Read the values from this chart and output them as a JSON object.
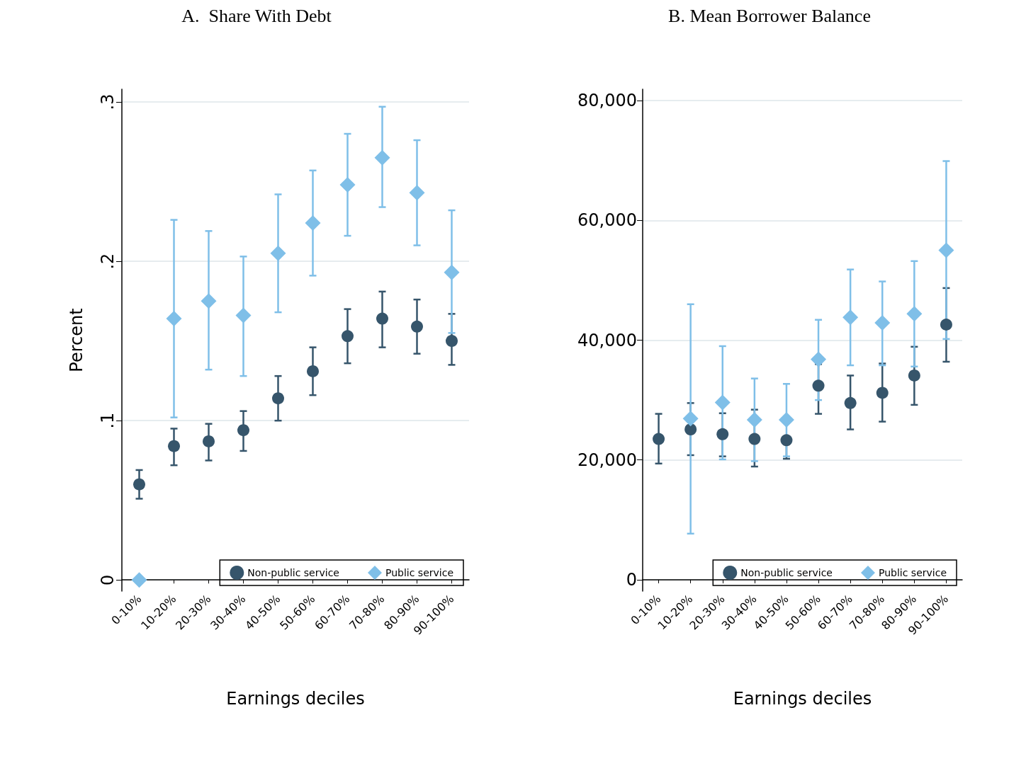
{
  "chart_data": [
    {
      "type": "scatter",
      "title": "A.  Share With Debt",
      "xlabel": "Earnings deciles",
      "ylabel": "Percent",
      "categories": [
        "0-10%",
        "10-20%",
        "20-30%",
        "30-40%",
        "40-50%",
        "50-60%",
        "60-70%",
        "70-80%",
        "80-90%",
        "90-100%"
      ],
      "series": [
        {
          "name": "Non-public service",
          "color": "#36556b",
          "marker": "circle",
          "values": [
            0.06,
            0.084,
            0.087,
            0.094,
            0.114,
            0.131,
            0.153,
            0.164,
            0.159,
            0.15
          ],
          "errors": [
            [
              0.051,
              0.069
            ],
            [
              0.072,
              0.095
            ],
            [
              0.075,
              0.098
            ],
            [
              0.081,
              0.106
            ],
            [
              0.1,
              0.128
            ],
            [
              0.116,
              0.146
            ],
            [
              0.136,
              0.17
            ],
            [
              0.146,
              0.181
            ],
            [
              0.142,
              0.176
            ],
            [
              0.135,
              0.167
            ]
          ]
        },
        {
          "name": "Public service",
          "color": "#7fbfe8",
          "marker": "diamond",
          "values": [
            0,
            0.164,
            0.175,
            0.166,
            0.205,
            0.224,
            0.248,
            0.265,
            0.243,
            0.193
          ],
          "errors": [
            null,
            [
              0.102,
              0.226
            ],
            [
              0.132,
              0.219
            ],
            [
              0.128,
              0.203
            ],
            [
              0.168,
              0.242
            ],
            [
              0.191,
              0.257
            ],
            [
              0.216,
              0.28
            ],
            [
              0.234,
              0.297
            ],
            [
              0.21,
              0.276
            ],
            [
              0.155,
              0.232
            ]
          ]
        }
      ],
      "ylim": [
        -0.007,
        0.308
      ],
      "yticks": [
        {
          "value": 0,
          "label": "0"
        },
        {
          "value": 0.1,
          "label": ".1"
        },
        {
          "value": 0.2,
          "label": ".2"
        },
        {
          "value": 0.3,
          "label": ".3"
        }
      ],
      "grid": "y",
      "legend": "bottom right"
    },
    {
      "type": "scatter",
      "title": "B. Mean Borrower Balance",
      "xlabel": "Earnings deciles",
      "categories": [
        "0-10%",
        "10-20%",
        "20-30%",
        "30-40%",
        "40-50%",
        "50-60%",
        "60-70%",
        "70-80%",
        "80-90%",
        "90-100%"
      ],
      "series": [
        {
          "name": "Non-public service",
          "color": "#36556b",
          "marker": "circle",
          "values": [
            23500,
            25100,
            24300,
            23500,
            23300,
            32400,
            29500,
            31200,
            34100,
            42600
          ],
          "errors": [
            [
              19400,
              27700
            ],
            [
              20800,
              29500
            ],
            [
              20600,
              27800
            ],
            [
              18900,
              28400
            ],
            [
              20200,
              23300
            ],
            [
              27700,
              36000
            ],
            [
              25100,
              34100
            ],
            [
              26400,
              36100
            ],
            [
              29200,
              38900
            ],
            [
              36400,
              48700
            ]
          ]
        },
        {
          "name": "Public service",
          "color": "#7fbfe8",
          "marker": "diamond",
          "values": [
            null,
            26900,
            29600,
            26700,
            26700,
            36800,
            43800,
            42900,
            44400,
            55000
          ],
          "errors": [
            null,
            [
              7700,
              46000
            ],
            [
              20100,
              39000
            ],
            [
              19800,
              33600
            ],
            [
              20600,
              32700
            ],
            [
              30000,
              43400
            ],
            [
              35800,
              51800
            ],
            [
              35800,
              49800
            ],
            [
              35600,
              53200
            ],
            [
              40200,
              69900
            ]
          ]
        }
      ],
      "ylim": [
        -1900,
        81900
      ],
      "yticks": [
        0,
        {
          "value": 20000,
          "label": "20,000"
        },
        {
          "value": 40000,
          "label": "40,000"
        },
        {
          "value": 60000,
          "label": "60,000"
        },
        {
          "value": 80000,
          "label": "80,000"
        }
      ],
      "grid": "y",
      "legend": "bottom right"
    }
  ]
}
